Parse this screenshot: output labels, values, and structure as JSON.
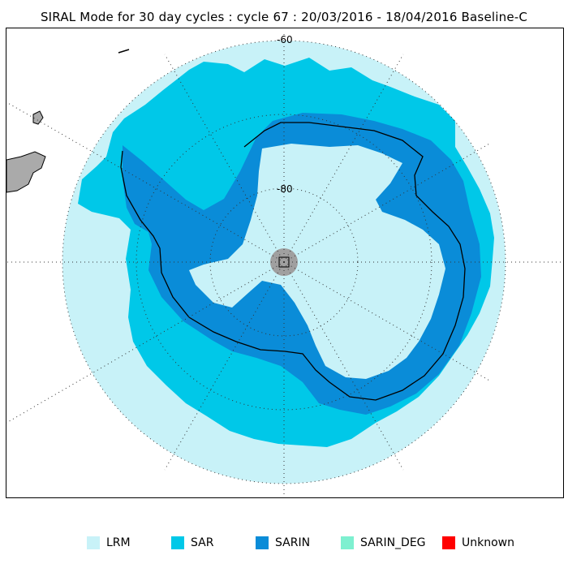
{
  "title": "SIRAL Mode for 30 day cycles : cycle 67 : 20/03/2016 - 18/04/2016 Baseline-C",
  "map": {
    "lat_labels": [
      "-60",
      "-80"
    ]
  },
  "legend": [
    {
      "label": "LRM",
      "color": "#c8f2f8"
    },
    {
      "label": "SAR",
      "color": "#00c8e8"
    },
    {
      "label": "SARIN",
      "color": "#0a8cd8"
    },
    {
      "label": "SARIN_DEG",
      "color": "#7ef0d0"
    },
    {
      "label": "Unknown",
      "color": "#ff0000"
    }
  ]
}
